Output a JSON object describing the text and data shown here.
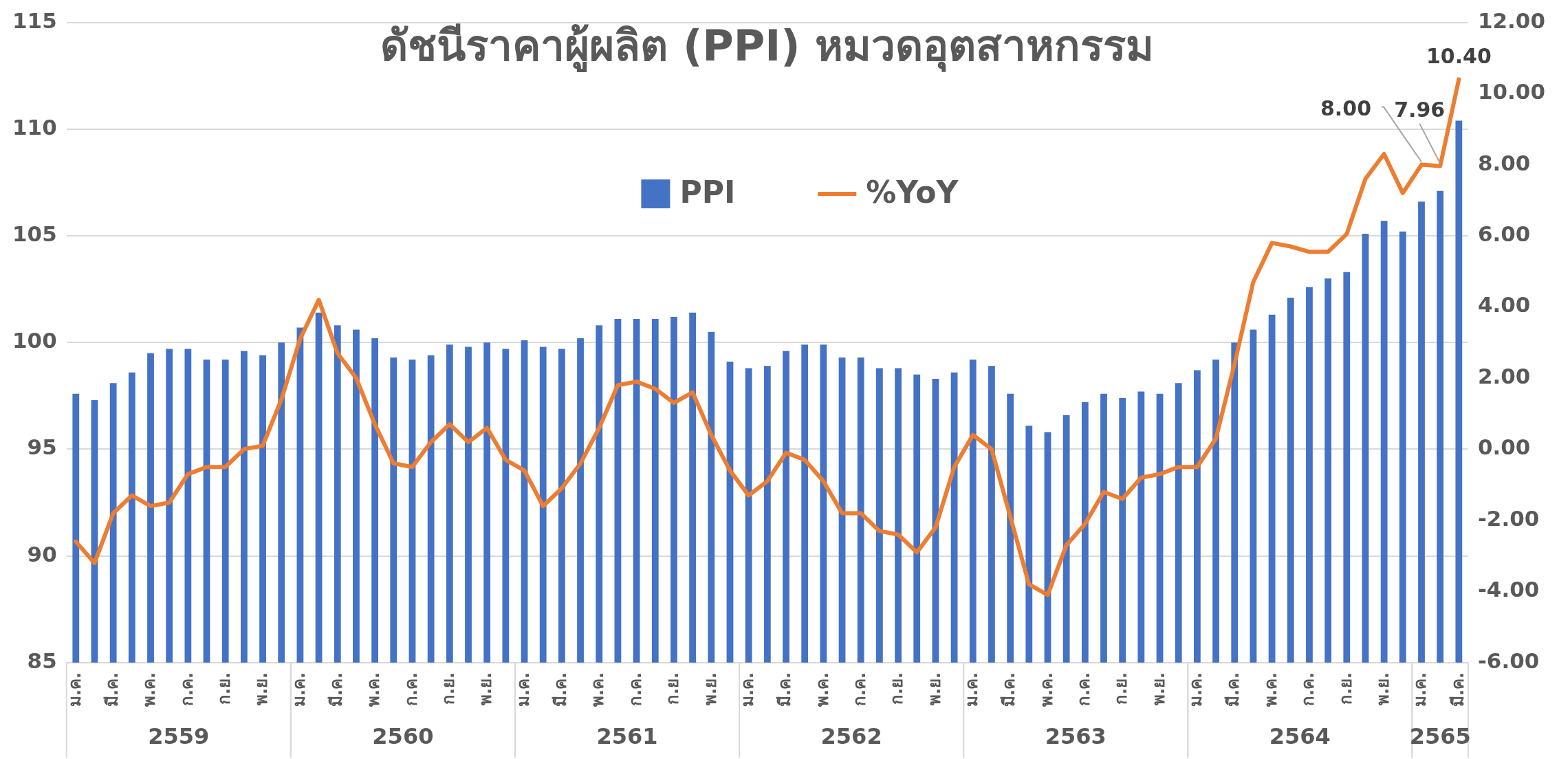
{
  "chart_data": {
    "type": "bar",
    "title": "ดัชนีราคาผู้ผลิต (PPI) หมวดอุตสาหกรรม",
    "categories": [
      "ม.ค.",
      null,
      "มี.ค.",
      null,
      "พ.ค.",
      null,
      "ก.ค.",
      null,
      "ก.ย.",
      null,
      "พ.ย.",
      null,
      "ม.ค.",
      null,
      "มี.ค.",
      null,
      "พ.ค.",
      null,
      "ก.ค.",
      null,
      "ก.ย.",
      null,
      "พ.ย.",
      null,
      "ม.ค.",
      null,
      "มี.ค.",
      null,
      "พ.ค.",
      null,
      "ก.ค.",
      null,
      "ก.ย.",
      null,
      "พ.ย.",
      null,
      "ม.ค.",
      null,
      "มี.ค.",
      null,
      "พ.ค.",
      null,
      "ก.ค.",
      null,
      "ก.ย.",
      null,
      "พ.ย.",
      null,
      "ม.ค.",
      null,
      "มี.ค.",
      null,
      "พ.ค.",
      null,
      "ก.ค.",
      null,
      "ก.ย.",
      null,
      "พ.ย.",
      null,
      "ม.ค.",
      null,
      "มี.ค.",
      null,
      "พ.ค.",
      null,
      "ก.ค.",
      null,
      "ก.ย.",
      null,
      "พ.ย.",
      null,
      "ม.ค.",
      null,
      "มี.ค."
    ],
    "series": [
      {
        "name": "PPI",
        "color": "#4472c4",
        "values": [
          97.6,
          97.3,
          98.1,
          98.6,
          99.5,
          99.7,
          99.7,
          99.2,
          99.2,
          99.6,
          99.4,
          100.0,
          100.7,
          101.4,
          100.8,
          100.6,
          100.2,
          99.3,
          99.2,
          99.4,
          99.9,
          99.8,
          100.0,
          99.7,
          100.1,
          99.8,
          99.7,
          100.2,
          100.8,
          101.1,
          101.1,
          101.1,
          101.2,
          101.4,
          100.5,
          99.1,
          98.8,
          98.9,
          99.6,
          99.9,
          99.9,
          99.3,
          99.3,
          98.8,
          98.8,
          98.5,
          98.3,
          98.6,
          99.2,
          98.9,
          97.6,
          96.1,
          95.8,
          96.6,
          97.2,
          97.6,
          97.4,
          97.7,
          97.6,
          98.1,
          98.7,
          99.2,
          100.0,
          100.6,
          101.3,
          102.1,
          102.6,
          103.0,
          103.3,
          105.1,
          105.7,
          105.2,
          106.6,
          107.1,
          110.4
        ]
      },
      {
        "name": "%YoY",
        "type": "line",
        "axis": "y2",
        "color": "#ed7d31",
        "values": [
          -2.6,
          -3.2,
          -1.8,
          -1.3,
          -1.6,
          -1.5,
          -0.7,
          -0.5,
          -0.5,
          0.0,
          0.1,
          1.4,
          3.1,
          4.2,
          2.7,
          2.0,
          0.7,
          -0.4,
          -0.5,
          0.2,
          0.7,
          0.2,
          0.6,
          -0.3,
          -0.6,
          -1.6,
          -1.1,
          -0.4,
          0.6,
          1.8,
          1.9,
          1.7,
          1.3,
          1.6,
          0.4,
          -0.6,
          -1.3,
          -0.9,
          -0.1,
          -0.3,
          -0.9,
          -1.8,
          -1.8,
          -2.3,
          -2.4,
          -2.9,
          -2.2,
          -0.5,
          0.4,
          0.0,
          -1.9,
          -3.8,
          -4.1,
          -2.7,
          -2.1,
          -1.2,
          -1.4,
          -0.8,
          -0.7,
          -0.5,
          -0.5,
          0.3,
          2.4,
          4.7,
          5.8,
          5.7,
          5.55,
          5.55,
          6.05,
          7.6,
          8.3,
          7.2,
          8.0,
          7.96,
          10.4
        ],
        "value_labels": [
          null,
          null,
          null,
          null,
          null,
          null,
          null,
          null,
          null,
          null,
          null,
          null,
          null,
          null,
          null,
          null,
          null,
          null,
          null,
          null,
          null,
          null,
          null,
          null,
          null,
          null,
          null,
          null,
          null,
          null,
          null,
          null,
          null,
          null,
          null,
          null,
          null,
          null,
          null,
          null,
          null,
          null,
          null,
          null,
          null,
          null,
          null,
          null,
          null,
          null,
          null,
          null,
          null,
          null,
          null,
          null,
          null,
          null,
          null,
          null,
          null,
          null,
          null,
          null,
          null,
          null,
          null,
          null,
          null,
          null,
          null,
          null,
          "8.00",
          "7.96",
          "10.40"
        ]
      }
    ],
    "ylim": [
      85,
      115
    ],
    "yticks": [
      85,
      90,
      95,
      100,
      105,
      110,
      115
    ],
    "y2lim": [
      -6,
      12
    ],
    "y2ticks": [
      {
        "value": -6,
        "label": "-6.00"
      },
      {
        "value": -4,
        "label": "-4.00"
      },
      {
        "value": -2,
        "label": "-2.00"
      },
      {
        "value": 0,
        "label": "0.00"
      },
      {
        "value": 2,
        "label": "2.00"
      },
      {
        "value": 4,
        "label": "4.00"
      },
      {
        "value": 6,
        "label": "6.00"
      },
      {
        "value": 8,
        "label": "8.00"
      },
      {
        "value": 10,
        "label": "10.00"
      },
      {
        "value": 12,
        "label": "12.00"
      }
    ],
    "grid": "y",
    "legend": "top",
    "marker": "none",
    "annotations": [
      "2559",
      "2560",
      "2561",
      "2562",
      "2563",
      "2564",
      "2565"
    ]
  }
}
